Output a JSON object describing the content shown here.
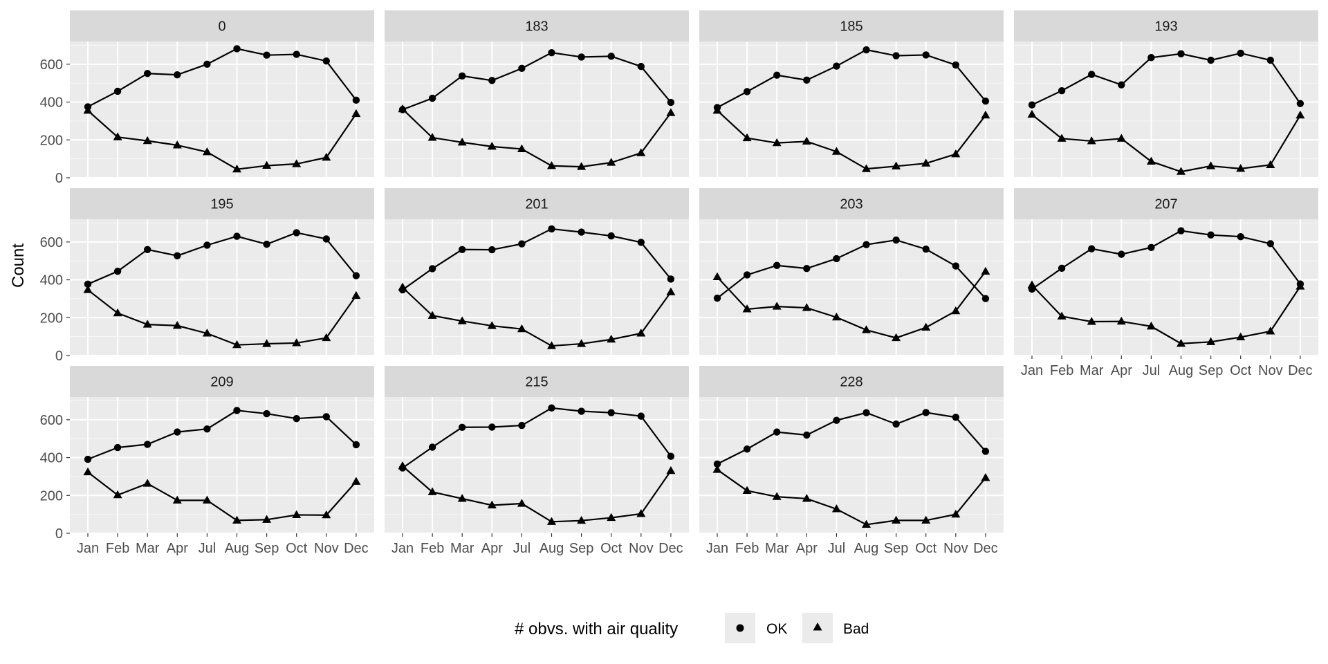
{
  "chart_data": {
    "type": "line",
    "facet_by": "station",
    "ylabel": "Count",
    "xlabel": "",
    "ylim": [
      0,
      720
    ],
    "yticks": [
      0,
      200,
      400,
      600
    ],
    "categories": [
      "Jan",
      "Feb",
      "Mar",
      "Apr",
      "Jul",
      "Aug",
      "Sep",
      "Oct",
      "Nov",
      "Dec"
    ],
    "legend": {
      "title": "# obvs. with air quality",
      "position": "bottom",
      "entries": [
        {
          "label": "OK",
          "shape": "circle"
        },
        {
          "label": "Bad",
          "shape": "triangle"
        }
      ]
    },
    "panels": [
      {
        "label": "0",
        "ok": [
          375,
          457,
          551,
          544,
          600,
          682,
          648,
          652,
          617,
          410
        ],
        "bad": [
          355,
          215,
          195,
          172,
          136,
          45,
          64,
          73,
          107,
          338
        ]
      },
      {
        "label": "183",
        "ok": [
          360,
          420,
          538,
          514,
          578,
          661,
          638,
          642,
          588,
          398
        ],
        "bad": [
          363,
          212,
          187,
          165,
          152,
          63,
          58,
          80,
          131,
          343
        ]
      },
      {
        "label": "185",
        "ok": [
          371,
          455,
          542,
          516,
          590,
          676,
          645,
          649,
          596,
          405
        ],
        "bad": [
          355,
          210,
          184,
          192,
          138,
          47,
          61,
          76,
          125,
          330
        ]
      },
      {
        "label": "193",
        "ok": [
          385,
          460,
          546,
          491,
          635,
          655,
          621,
          658,
          621,
          392
        ],
        "bad": [
          334,
          207,
          194,
          207,
          86,
          32,
          62,
          48,
          68,
          330
        ]
      },
      {
        "label": "195",
        "ok": [
          377,
          445,
          560,
          527,
          583,
          630,
          588,
          649,
          616,
          422
        ],
        "bad": [
          347,
          224,
          164,
          158,
          117,
          56,
          62,
          66,
          93,
          316
        ]
      },
      {
        "label": "201",
        "ok": [
          347,
          459,
          560,
          559,
          590,
          669,
          652,
          632,
          598,
          404
        ],
        "bad": [
          360,
          211,
          182,
          157,
          140,
          51,
          62,
          85,
          117,
          335
        ]
      },
      {
        "label": "203",
        "ok": [
          303,
          426,
          476,
          460,
          512,
          586,
          610,
          562,
          473,
          301
        ],
        "bad": [
          415,
          245,
          259,
          252,
          202,
          135,
          93,
          148,
          235,
          444
        ]
      },
      {
        "label": "207",
        "ok": [
          351,
          461,
          564,
          535,
          571,
          659,
          637,
          628,
          591,
          378
        ],
        "bad": [
          372,
          207,
          179,
          180,
          154,
          63,
          72,
          97,
          128,
          365
        ]
      },
      {
        "label": "209",
        "ok": [
          391,
          453,
          470,
          535,
          551,
          649,
          632,
          606,
          616,
          468
        ],
        "bad": [
          323,
          202,
          263,
          174,
          174,
          68,
          72,
          97,
          96,
          273
        ]
      },
      {
        "label": "215",
        "ok": [
          345,
          455,
          560,
          561,
          570,
          662,
          645,
          637,
          619,
          407
        ],
        "bad": [
          355,
          218,
          183,
          148,
          157,
          61,
          67,
          82,
          103,
          330
        ]
      },
      {
        "label": "228",
        "ok": [
          366,
          445,
          535,
          519,
          597,
          637,
          577,
          638,
          613,
          433
        ],
        "bad": [
          336,
          225,
          193,
          183,
          128,
          46,
          68,
          68,
          100,
          293
        ]
      }
    ]
  }
}
